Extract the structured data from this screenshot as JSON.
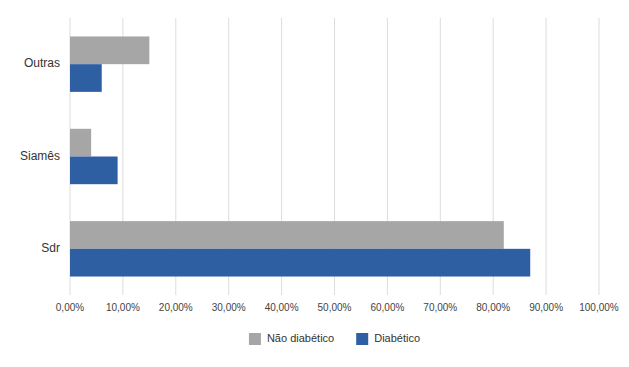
{
  "chart_data": {
    "type": "bar",
    "orientation": "horizontal",
    "categories": [
      "Sdr",
      "Siamês",
      "Outras"
    ],
    "series": [
      {
        "name": "Não diabético",
        "color": "#a6a6a6",
        "values": [
          0.82,
          0.04,
          0.15
        ]
      },
      {
        "name": "Diabético",
        "color": "#2e5fa3",
        "values": [
          0.87,
          0.09,
          0.06
        ]
      }
    ],
    "xlim": [
      0,
      1.0
    ],
    "xticks": [
      {
        "value": 0.0,
        "label": "0,00%"
      },
      {
        "value": 0.1,
        "label": "10,00%"
      },
      {
        "value": 0.2,
        "label": "20,00%"
      },
      {
        "value": 0.3,
        "label": "30,00%"
      },
      {
        "value": 0.4,
        "label": "40,00%"
      },
      {
        "value": 0.5,
        "label": "50,00%"
      },
      {
        "value": 0.6,
        "label": "60,00%"
      },
      {
        "value": 0.7,
        "label": "70,00%"
      },
      {
        "value": 0.8,
        "label": "80,00%"
      },
      {
        "value": 0.9,
        "label": "90,00%"
      },
      {
        "value": 1.0,
        "label": "100,00%"
      }
    ],
    "grid": true,
    "legend": "bottom"
  }
}
